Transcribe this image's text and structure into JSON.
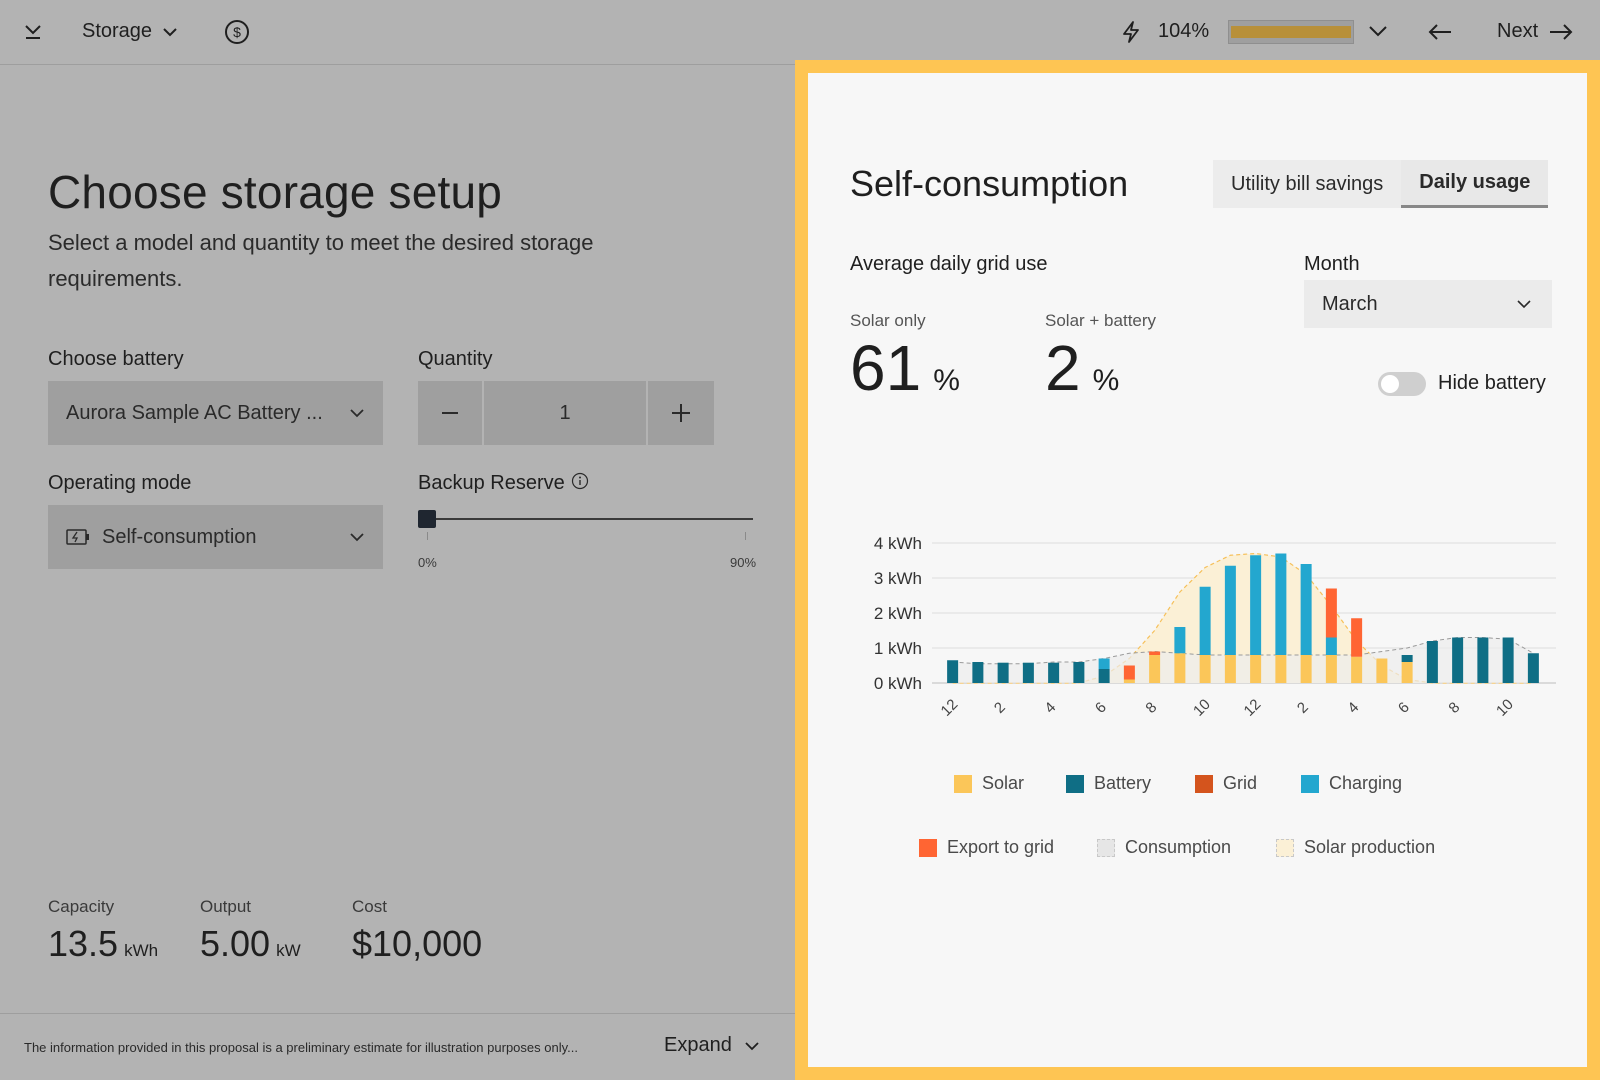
{
  "topbar": {
    "section_label": "Storage",
    "percent": "104%",
    "next_label": "Next",
    "progress_fraction": 1.0,
    "colors": {
      "progress": "#b8903a"
    }
  },
  "left": {
    "title": "Choose storage setup",
    "subtitle": "Select a model and quantity to meet the desired storage requirements.",
    "battery_label": "Choose battery",
    "battery_value": "Aurora Sample AC Battery ...",
    "quantity_label": "Quantity",
    "quantity_value": "1",
    "mode_label": "Operating mode",
    "mode_value": "Self-consumption",
    "backup_label": "Backup Reserve",
    "backup_min": "0%",
    "backup_max": "90%",
    "backup_value_fraction": 0,
    "stats": [
      {
        "label": "Capacity",
        "value": "13.5",
        "unit": "kWh"
      },
      {
        "label": "Output",
        "value": "5.00",
        "unit": "kW"
      },
      {
        "label": "Cost",
        "value": "$10,000",
        "unit": ""
      }
    ],
    "footer_text": "The information provided in this proposal is a preliminary estimate for illustration purposes only...",
    "expand_label": "Expand"
  },
  "right": {
    "title": "Self-consumption",
    "tabs": [
      {
        "label": "Utility bill savings",
        "active": false
      },
      {
        "label": "Daily usage",
        "active": true
      }
    ],
    "grid_use_label": "Average daily grid use",
    "solar_only_label": "Solar only",
    "solar_only_value": "61",
    "solar_battery_label": "Solar + battery",
    "solar_battery_value": "2",
    "percent_sign": "%",
    "month_label": "Month",
    "month_value": "March",
    "hide_battery_label": "Hide battery",
    "hide_battery_on": false
  },
  "chart_data": {
    "type": "bar",
    "stacked": true,
    "unit": "kWh",
    "y_ticks": [
      "0 kWh",
      "1 kWh",
      "2 kWh",
      "3 kWh",
      "4 kWh"
    ],
    "ylim": [
      0,
      4
    ],
    "x_tick_labels": [
      "12",
      "2",
      "4",
      "6",
      "8",
      "10",
      "12",
      "2",
      "4",
      "6",
      "8",
      "10"
    ],
    "hours": [
      0,
      1,
      2,
      3,
      4,
      5,
      6,
      7,
      8,
      9,
      10,
      11,
      12,
      13,
      14,
      15,
      16,
      17,
      18,
      19,
      20,
      21,
      22,
      23
    ],
    "series": [
      {
        "name": "Solar",
        "color": "#fbc659",
        "values": [
          0,
          0,
          0,
          0,
          0,
          0,
          0,
          0.1,
          0.8,
          0.85,
          0.8,
          0.8,
          0.8,
          0.8,
          0.8,
          0.8,
          0.75,
          0.7,
          0.6,
          0,
          0,
          0,
          0,
          0
        ]
      },
      {
        "name": "Battery",
        "color": "#0f6e85",
        "values": [
          0.65,
          0.6,
          0.58,
          0.58,
          0.58,
          0.6,
          0.4,
          0,
          0,
          0,
          0,
          0,
          0,
          0,
          0,
          0,
          0,
          0,
          0.2,
          1.2,
          1.3,
          1.3,
          1.3,
          0.85
        ]
      },
      {
        "name": "Grid",
        "color": "#d4541d",
        "values": [
          0,
          0,
          0,
          0,
          0,
          0,
          0,
          0,
          0,
          0,
          0,
          0,
          0,
          0,
          0,
          0,
          0,
          0,
          0,
          0,
          0,
          0,
          0,
          0
        ]
      },
      {
        "name": "Charging",
        "color": "#23a7cf",
        "values": [
          0,
          0,
          0,
          0,
          0,
          0,
          0.3,
          0,
          0,
          0.75,
          1.95,
          2.55,
          2.85,
          2.9,
          2.6,
          0.5,
          0,
          0,
          0,
          0,
          0,
          0,
          0,
          0
        ]
      },
      {
        "name": "Export to grid",
        "color": "#ff6533",
        "values": [
          0,
          0,
          0,
          0,
          0,
          0,
          0,
          0.4,
          0.1,
          0,
          0,
          0,
          0,
          0,
          0,
          1.4,
          1.1,
          0,
          0,
          0,
          0,
          0,
          0,
          0
        ]
      }
    ],
    "consumption": [
      0.6,
      0.55,
      0.55,
      0.55,
      0.6,
      0.6,
      0.7,
      0.85,
      0.9,
      0.85,
      0.8,
      0.8,
      0.8,
      0.8,
      0.8,
      0.8,
      0.8,
      0.9,
      1.0,
      1.2,
      1.3,
      1.3,
      1.25,
      0.85
    ],
    "solar_production": [
      0,
      0,
      0,
      0,
      0,
      0,
      0.2,
      0.7,
      1.5,
      2.6,
      3.3,
      3.65,
      3.7,
      3.6,
      3.1,
      2.2,
      1.2,
      0.5,
      0.1,
      0,
      0,
      0,
      0,
      0
    ],
    "legend": [
      {
        "name": "Solar",
        "color": "#fbc659",
        "style": "solid"
      },
      {
        "name": "Battery",
        "color": "#0f6e85",
        "style": "solid"
      },
      {
        "name": "Grid",
        "color": "#d4541d",
        "style": "solid"
      },
      {
        "name": "Charging",
        "color": "#23a7cf",
        "style": "solid"
      },
      {
        "name": "Export to grid",
        "color": "#ff6533",
        "style": "solid"
      },
      {
        "name": "Consumption",
        "color": "#e6e6e6",
        "style": "dashed"
      },
      {
        "name": "Solar production",
        "color": "#fbf0d6",
        "style": "dashed"
      }
    ],
    "grid": true
  }
}
